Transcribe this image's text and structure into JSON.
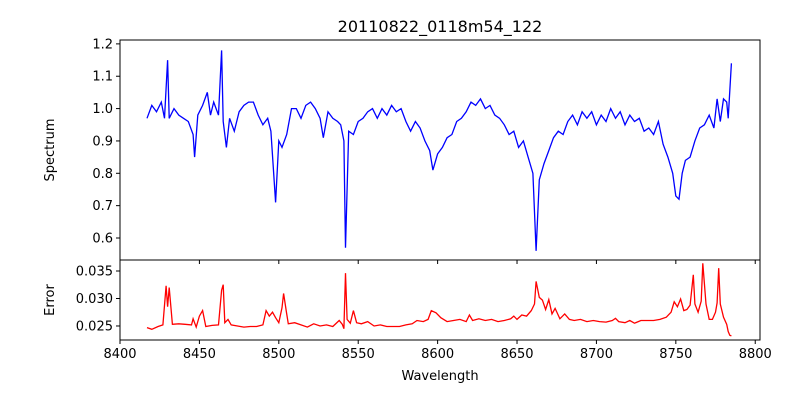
{
  "chart_data": [
    {
      "type": "line",
      "title": "20110822_0118m54_122",
      "xlabel": "",
      "ylabel": "Spectrum",
      "xlim": [
        8400,
        8803
      ],
      "ylim": [
        0.532,
        1.212
      ],
      "grid": false,
      "color": "#0000ff",
      "xticks": [
        8400,
        8450,
        8500,
        8550,
        8600,
        8650,
        8700,
        8750,
        8800
      ],
      "yticks": [
        0.6,
        0.7,
        0.8,
        0.9,
        1.0,
        1.1,
        1.2
      ],
      "ytick_labels": [
        "0.6",
        "0.7",
        "0.8",
        "0.9",
        "1.0",
        "1.1",
        "1.2"
      ],
      "x": [
        8417,
        8420,
        8423,
        8426,
        8428,
        8430,
        8431,
        8434,
        8437,
        8440,
        8443,
        8446,
        8447,
        8449,
        8452,
        8455,
        8457,
        8459,
        8462,
        8464,
        8465,
        8467,
        8469,
        8472,
        8475,
        8478,
        8481,
        8484,
        8487,
        8490,
        8493,
        8495,
        8498,
        8500,
        8502,
        8505,
        8508,
        8511,
        8514,
        8517,
        8520,
        8523,
        8526,
        8528,
        8531,
        8534,
        8537,
        8539,
        8541,
        8542,
        8544,
        8547,
        8550,
        8553,
        8556,
        8559,
        8562,
        8565,
        8568,
        8571,
        8574,
        8577,
        8580,
        8583,
        8586,
        8589,
        8592,
        8595,
        8597,
        8600,
        8603,
        8606,
        8609,
        8612,
        8615,
        8618,
        8621,
        8624,
        8627,
        8630,
        8633,
        8636,
        8639,
        8642,
        8645,
        8648,
        8651,
        8654,
        8657,
        8660,
        8662,
        8664,
        8667,
        8670,
        8673,
        8676,
        8679,
        8682,
        8685,
        8688,
        8691,
        8694,
        8697,
        8700,
        8703,
        8706,
        8709,
        8712,
        8715,
        8718,
        8721,
        8724,
        8727,
        8730,
        8733,
        8736,
        8739,
        8742,
        8745,
        8748,
        8750,
        8752,
        8754,
        8756,
        8759,
        8762,
        8765,
        8768,
        8771,
        8774,
        8776,
        8778,
        8780,
        8782,
        8783,
        8785
      ],
      "y": [
        0.97,
        1.01,
        0.99,
        1.02,
        0.97,
        1.15,
        0.97,
        1.0,
        0.98,
        0.97,
        0.96,
        0.92,
        0.85,
        0.98,
        1.01,
        1.05,
        0.98,
        1.02,
        0.98,
        1.18,
        0.96,
        0.88,
        0.97,
        0.93,
        0.99,
        1.01,
        1.02,
        1.02,
        0.98,
        0.95,
        0.97,
        0.93,
        0.71,
        0.9,
        0.88,
        0.92,
        1.0,
        1.0,
        0.97,
        1.01,
        1.02,
        1.0,
        0.97,
        0.91,
        0.99,
        0.97,
        0.96,
        0.95,
        0.9,
        0.57,
        0.93,
        0.92,
        0.96,
        0.97,
        0.99,
        1.0,
        0.97,
        1.0,
        0.98,
        1.01,
        0.99,
        1.0,
        0.96,
        0.93,
        0.96,
        0.94,
        0.9,
        0.87,
        0.81,
        0.86,
        0.88,
        0.91,
        0.92,
        0.96,
        0.97,
        0.99,
        1.02,
        1.01,
        1.03,
        1.0,
        1.01,
        0.98,
        0.97,
        0.95,
        0.92,
        0.93,
        0.88,
        0.9,
        0.85,
        0.8,
        0.56,
        0.78,
        0.83,
        0.87,
        0.91,
        0.93,
        0.92,
        0.96,
        0.98,
        0.95,
        0.99,
        0.97,
        0.99,
        0.95,
        0.98,
        0.96,
        1.0,
        0.97,
        0.99,
        0.95,
        0.98,
        0.96,
        0.97,
        0.93,
        0.94,
        0.92,
        0.96,
        0.89,
        0.85,
        0.8,
        0.73,
        0.72,
        0.8,
        0.84,
        0.85,
        0.9,
        0.94,
        0.95,
        0.98,
        0.94,
        1.03,
        0.96,
        1.03,
        1.02,
        0.97,
        1.14
      ]
    },
    {
      "type": "line",
      "xlabel": "Wavelength",
      "ylabel": "Error",
      "xlim": [
        8400,
        8803
      ],
      "ylim": [
        0.02245,
        0.037
      ],
      "grid": false,
      "color": "#ff0000",
      "xticks": [
        8400,
        8450,
        8500,
        8550,
        8600,
        8650,
        8700,
        8750,
        8800
      ],
      "xtick_labels": [
        "8400",
        "8450",
        "8500",
        "8550",
        "8600",
        "8650",
        "8700",
        "8750",
        "8800"
      ],
      "yticks": [
        0.025,
        0.03,
        0.035
      ],
      "ytick_labels": [
        "0.025",
        "0.030",
        "0.035"
      ],
      "x": [
        8417,
        8420,
        8424,
        8427,
        8429,
        8430,
        8431,
        8433,
        8437,
        8441,
        8445,
        8446,
        8448,
        8450,
        8452,
        8454,
        8458,
        8462,
        8464,
        8465,
        8466,
        8468,
        8470,
        8474,
        8478,
        8482,
        8486,
        8490,
        8492,
        8494,
        8496,
        8498,
        8500,
        8502,
        8503,
        8505,
        8506,
        8510,
        8514,
        8518,
        8522,
        8526,
        8530,
        8534,
        8538,
        8540,
        8541,
        8542,
        8543,
        8545,
        8547,
        8549,
        8552,
        8556,
        8560,
        8564,
        8568,
        8572,
        8576,
        8580,
        8584,
        8587,
        8591,
        8594,
        8596,
        8599,
        8602,
        8606,
        8610,
        8614,
        8618,
        8620,
        8622,
        8626,
        8630,
        8634,
        8638,
        8642,
        8646,
        8648,
        8650,
        8653,
        8656,
        8659,
        8661,
        8662,
        8664,
        8666,
        8668,
        8670,
        8672,
        8674,
        8677,
        8680,
        8683,
        8686,
        8690,
        8694,
        8698,
        8702,
        8706,
        8710,
        8712,
        8714,
        8718,
        8721,
        8724,
        8728,
        8732,
        8736,
        8740,
        8744,
        8747,
        8749,
        8751,
        8753,
        8755,
        8757,
        8759,
        8761,
        8762,
        8764,
        8766,
        8767,
        8769,
        8771,
        8773,
        8775,
        8776,
        8777,
        8778,
        8780,
        8782,
        8783,
        8784,
        8785
      ],
      "y": [
        0.0247,
        0.0244,
        0.0249,
        0.0252,
        0.0323,
        0.0285,
        0.032,
        0.0253,
        0.0254,
        0.0253,
        0.0252,
        0.0263,
        0.0248,
        0.0268,
        0.0278,
        0.0249,
        0.0251,
        0.0252,
        0.0315,
        0.0325,
        0.0256,
        0.0262,
        0.0252,
        0.025,
        0.0248,
        0.0249,
        0.0249,
        0.0252,
        0.0278,
        0.0268,
        0.0275,
        0.0265,
        0.0256,
        0.0283,
        0.0309,
        0.0272,
        0.0254,
        0.0256,
        0.0252,
        0.0248,
        0.0254,
        0.025,
        0.0252,
        0.0249,
        0.026,
        0.0253,
        0.0245,
        0.0346,
        0.0262,
        0.0255,
        0.0278,
        0.0256,
        0.0254,
        0.0258,
        0.025,
        0.0252,
        0.0249,
        0.0249,
        0.0249,
        0.0252,
        0.0254,
        0.026,
        0.0258,
        0.0262,
        0.0278,
        0.0274,
        0.0265,
        0.0258,
        0.026,
        0.0262,
        0.0258,
        0.027,
        0.026,
        0.0263,
        0.026,
        0.0262,
        0.0258,
        0.026,
        0.0263,
        0.0268,
        0.0262,
        0.027,
        0.0268,
        0.0278,
        0.029,
        0.0331,
        0.0302,
        0.0297,
        0.028,
        0.0298,
        0.0272,
        0.0282,
        0.0263,
        0.0272,
        0.0262,
        0.026,
        0.0262,
        0.0258,
        0.026,
        0.0258,
        0.0257,
        0.026,
        0.0264,
        0.0258,
        0.0256,
        0.026,
        0.0255,
        0.026,
        0.026,
        0.026,
        0.0262,
        0.0266,
        0.0275,
        0.0294,
        0.0285,
        0.0299,
        0.0278,
        0.028,
        0.0288,
        0.0343,
        0.029,
        0.0275,
        0.0295,
        0.0364,
        0.029,
        0.0262,
        0.0262,
        0.0275,
        0.0292,
        0.0355,
        0.029,
        0.0266,
        0.0253,
        0.024,
        0.0233,
        0.0232
      ]
    }
  ]
}
